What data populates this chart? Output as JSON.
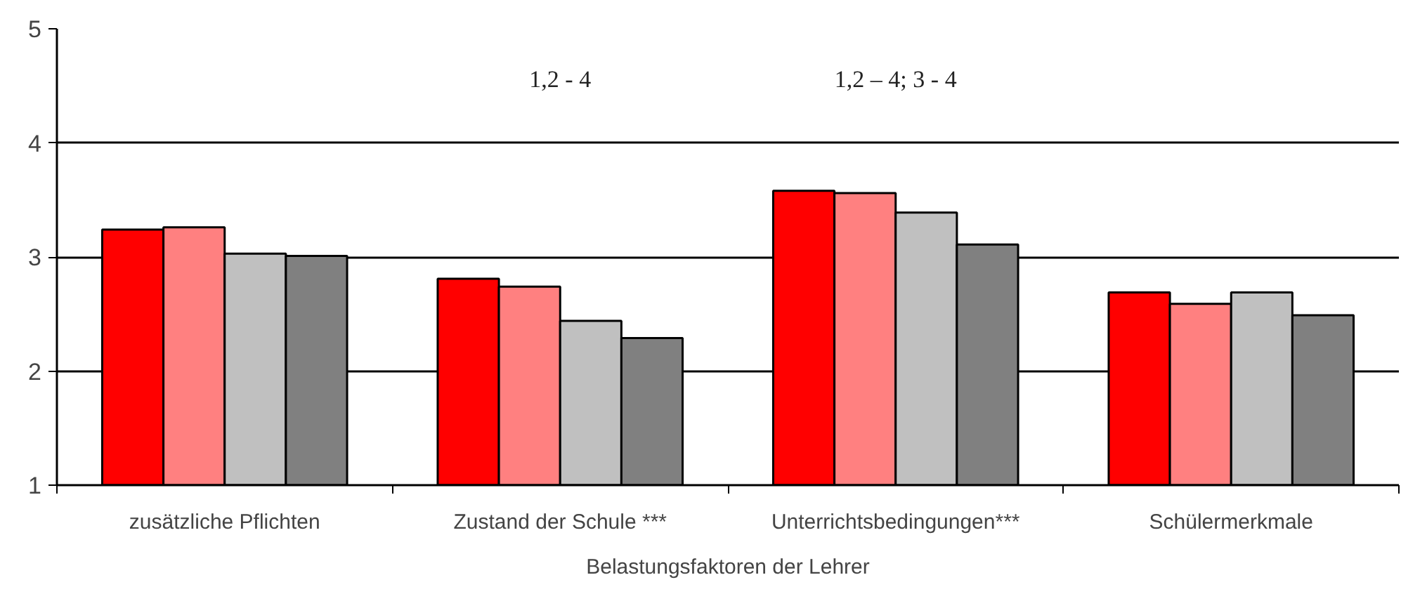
{
  "chart_data": {
    "type": "bar",
    "xlabel": "Belastungsfaktoren der Lehrer",
    "categories": [
      "zusätzliche Pflichten",
      "Zustand der Schule ***",
      "Unterrichtsbedingungen***",
      "Schülermerkmale"
    ],
    "series": [
      {
        "color": "#ff0000",
        "values": [
          3.24,
          2.81,
          3.58,
          2.69
        ]
      },
      {
        "color": "#ff8080",
        "values": [
          3.26,
          2.74,
          3.56,
          2.59
        ]
      },
      {
        "color": "#c0c0c0",
        "values": [
          3.03,
          2.44,
          3.39,
          2.69
        ]
      },
      {
        "color": "#808080",
        "values": [
          3.01,
          2.29,
          3.11,
          2.49
        ]
      }
    ],
    "ylim": [
      1,
      5
    ],
    "yticks": [
      1,
      2,
      3,
      4,
      5
    ],
    "grid": "y",
    "annotations": [
      "1,2 - 4",
      "1,2 – 4; 3 - 4"
    ]
  }
}
